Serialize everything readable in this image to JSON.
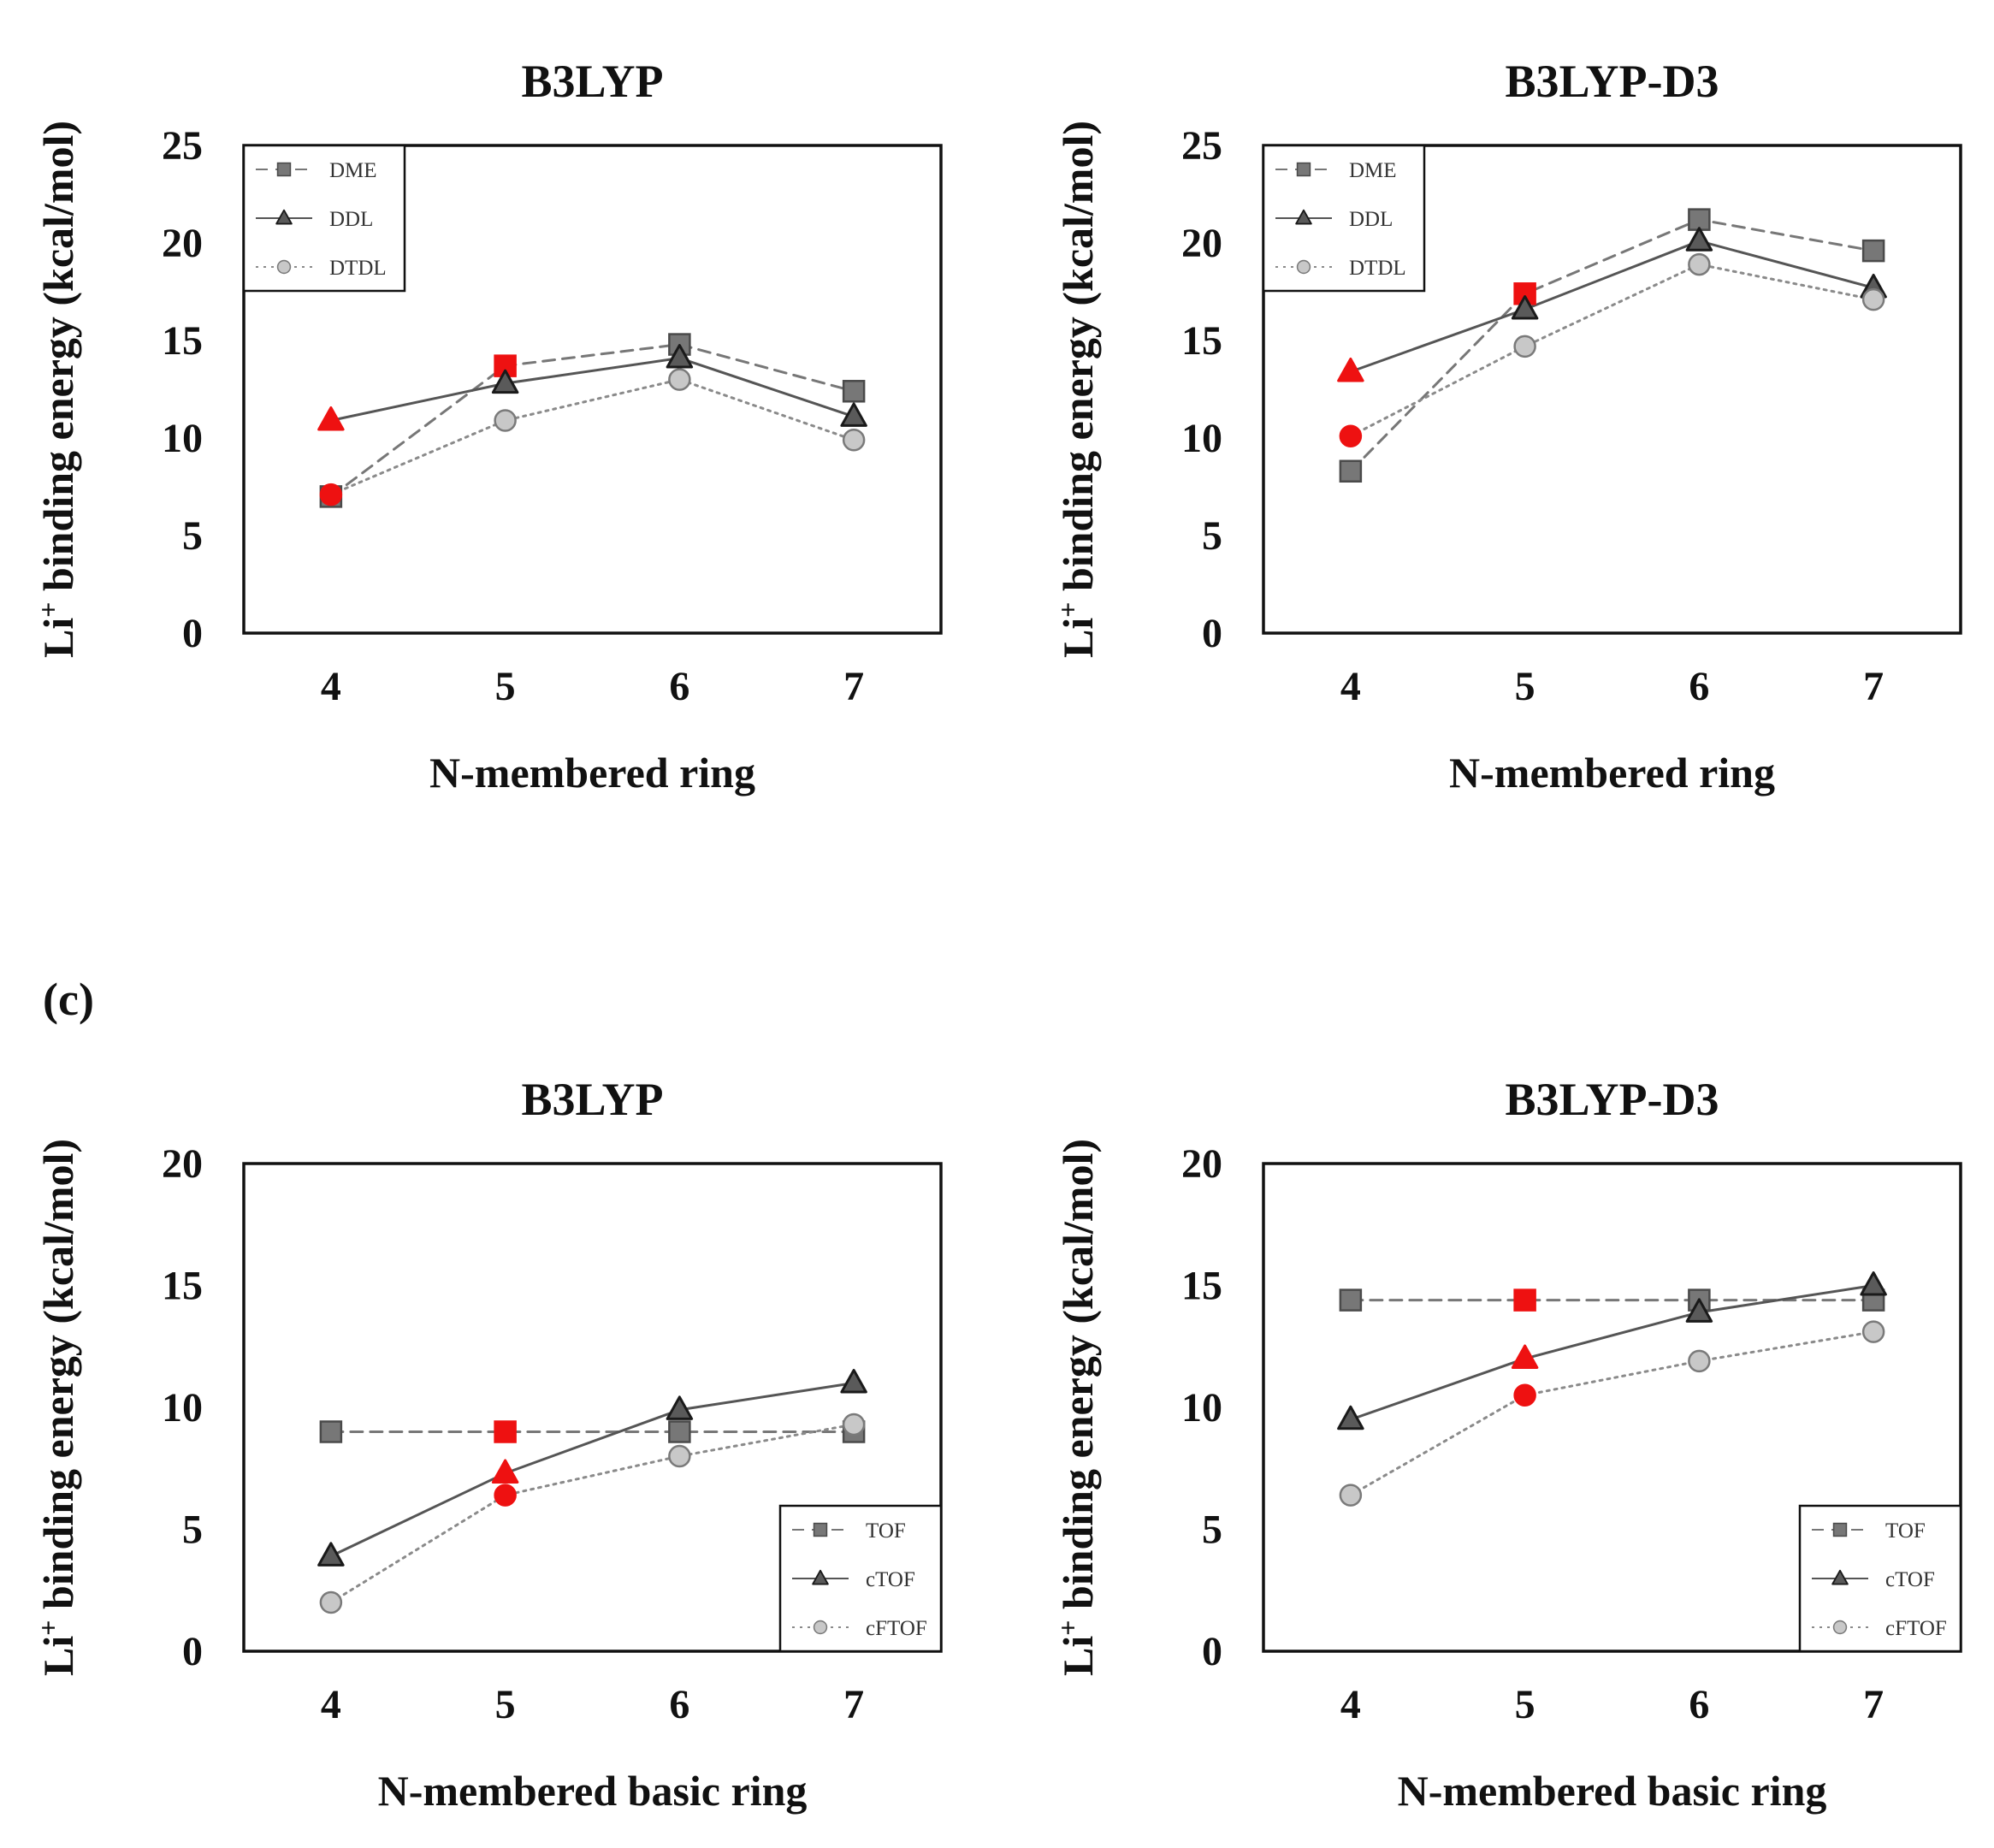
{
  "panel_label": "(c)",
  "chart_data": [
    {
      "type": "line",
      "title": "B3LYP",
      "xlabel": "N-membered ring",
      "ylabel": "Li⁺ binding energy (kcal/mol)",
      "ylabel_main": "Li",
      "ylabel_sup": "+",
      "ylabel_rest": " binding  energy (kcal/mol)",
      "categories": [
        "4",
        "5",
        "6",
        "7"
      ],
      "ylim": [
        0,
        25
      ],
      "yticks": [
        "0",
        "5",
        "10",
        "15",
        "20",
        "25"
      ],
      "legend_position": "top-left",
      "highlight_index": 0,
      "series": [
        {
          "name": "DME",
          "marker": "square",
          "line": "dashed",
          "values": [
            7.0,
            13.7,
            14.8,
            12.4
          ],
          "highlight": [
            false,
            true,
            false,
            false
          ]
        },
        {
          "name": "DDL",
          "marker": "triangle",
          "line": "solid",
          "values": [
            10.9,
            12.8,
            14.1,
            11.1
          ],
          "highlight": [
            true,
            false,
            false,
            false
          ]
        },
        {
          "name": "DTDL",
          "marker": "circle",
          "line": "dotted",
          "values": [
            7.1,
            10.9,
            13.0,
            9.9
          ],
          "highlight": [
            true,
            false,
            false,
            false
          ]
        }
      ]
    },
    {
      "type": "line",
      "title": "B3LYP-D3",
      "xlabel": "N-membered ring",
      "ylabel": "Li⁺ binding energy (kcal/mol)",
      "ylabel_main": "Li",
      "ylabel_sup": "+",
      "ylabel_rest": " binding  energy (kcal/mol)",
      "categories": [
        "4",
        "5",
        "6",
        "7"
      ],
      "ylim": [
        0,
        25
      ],
      "yticks": [
        "0",
        "5",
        "10",
        "15",
        "20",
        "25"
      ],
      "legend_position": "top-left",
      "series": [
        {
          "name": "DME",
          "marker": "square",
          "line": "dashed",
          "values": [
            8.3,
            17.4,
            21.2,
            19.6
          ],
          "highlight": [
            false,
            true,
            false,
            false
          ]
        },
        {
          "name": "DDL",
          "marker": "triangle",
          "line": "solid",
          "values": [
            13.4,
            16.6,
            20.1,
            17.7
          ],
          "highlight": [
            true,
            false,
            false,
            false
          ]
        },
        {
          "name": "DTDL",
          "marker": "circle",
          "line": "dotted",
          "values": [
            10.1,
            14.7,
            18.9,
            17.1
          ],
          "highlight": [
            true,
            false,
            false,
            false
          ]
        }
      ]
    },
    {
      "type": "line",
      "title": "B3LYP",
      "xlabel": "N-membered basic ring",
      "ylabel": "Li⁺ binding energy (kcal/mol)",
      "ylabel_main": "Li",
      "ylabel_sup": "+",
      "ylabel_rest": " binding  energy (kcal/mol)",
      "categories": [
        "4",
        "5",
        "6",
        "7"
      ],
      "ylim": [
        0,
        20
      ],
      "yticks": [
        "0",
        "5",
        "10",
        "15",
        "20"
      ],
      "legend_position": "bottom-right",
      "series": [
        {
          "name": "TOF",
          "marker": "square",
          "line": "dashed",
          "values": [
            9.0,
            9.0,
            9.0,
            9.0
          ],
          "highlight": [
            false,
            true,
            false,
            false
          ]
        },
        {
          "name": "cTOF",
          "marker": "triangle",
          "line": "solid",
          "values": [
            3.9,
            7.3,
            9.9,
            11.0
          ],
          "highlight": [
            false,
            true,
            false,
            false
          ]
        },
        {
          "name": "cFTOF",
          "marker": "circle",
          "line": "dotted",
          "values": [
            2.0,
            6.4,
            8.0,
            9.3
          ],
          "highlight": [
            false,
            true,
            false,
            false
          ]
        }
      ]
    },
    {
      "type": "line",
      "title": "B3LYP-D3",
      "xlabel": "N-membered basic ring",
      "ylabel": "Li⁺ binding energy (kcal/mol)",
      "ylabel_main": "Li",
      "ylabel_sup": "+",
      "ylabel_rest": " binding  energy (kcal/mol)",
      "categories": [
        "4",
        "5",
        "6",
        "7"
      ],
      "ylim": [
        0,
        20
      ],
      "yticks": [
        "0",
        "5",
        "10",
        "15",
        "20"
      ],
      "legend_position": "bottom-right",
      "series": [
        {
          "name": "TOF",
          "marker": "square",
          "line": "dashed",
          "values": [
            14.4,
            14.4,
            14.4,
            14.4
          ],
          "highlight": [
            false,
            true,
            false,
            false
          ]
        },
        {
          "name": "cTOF",
          "marker": "triangle",
          "line": "solid",
          "values": [
            9.5,
            12.0,
            13.9,
            15.0
          ],
          "highlight": [
            false,
            true,
            false,
            false
          ]
        },
        {
          "name": "cFTOF",
          "marker": "circle",
          "line": "dotted",
          "values": [
            6.4,
            10.5,
            11.9,
            13.1
          ],
          "highlight": [
            false,
            true,
            false,
            false
          ]
        }
      ]
    }
  ],
  "style": {
    "highlight_color": "#ee1111",
    "square_fill": "#777777",
    "square_stroke": "#4a4a4a",
    "triangle_fill": "#5a5a5a",
    "triangle_stroke": "#1a1a1a",
    "circle_fill": "#c8c8c8",
    "circle_stroke": "#7a7a7a",
    "line_color_dashed": "#777777",
    "line_color_solid": "#555555",
    "line_color_dotted": "#8a8a8a",
    "axis_color": "#111111"
  }
}
